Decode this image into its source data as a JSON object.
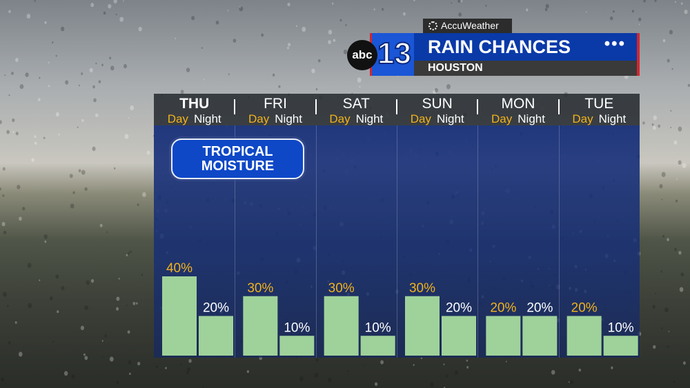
{
  "header": {
    "brand_tag": "AccuWeather",
    "title": "RAIN CHANCES",
    "location": "HOUSTON",
    "more_glyph": "•••",
    "station_logo_text": "abc",
    "station_number": "13"
  },
  "callout": {
    "line1": "TROPICAL",
    "line2": "MOISTURE"
  },
  "colors": {
    "bar": "#9fd29a",
    "day_label": "#f2b21c",
    "night_label": "#ffffff",
    "title_bar": "#0a3aa8",
    "accent_red": "#d22630"
  },
  "chart_data": {
    "type": "bar",
    "title": "RAIN CHANCES",
    "categories": [
      "THU",
      "FRI",
      "SAT",
      "SUN",
      "MON",
      "TUE"
    ],
    "series": [
      {
        "name": "Day",
        "values": [
          40,
          30,
          30,
          30,
          20,
          20
        ]
      },
      {
        "name": "Night",
        "values": [
          20,
          10,
          10,
          20,
          20,
          10
        ]
      }
    ],
    "value_labels": {
      "Day": [
        "40%",
        "30%",
        "30%",
        "30%",
        "20%",
        "20%"
      ],
      "Night": [
        "20%",
        "10%",
        "10%",
        "20%",
        "20%",
        "10%"
      ]
    },
    "unit": "%",
    "ylim": [
      0,
      100
    ],
    "grid": false,
    "legend": "none"
  }
}
